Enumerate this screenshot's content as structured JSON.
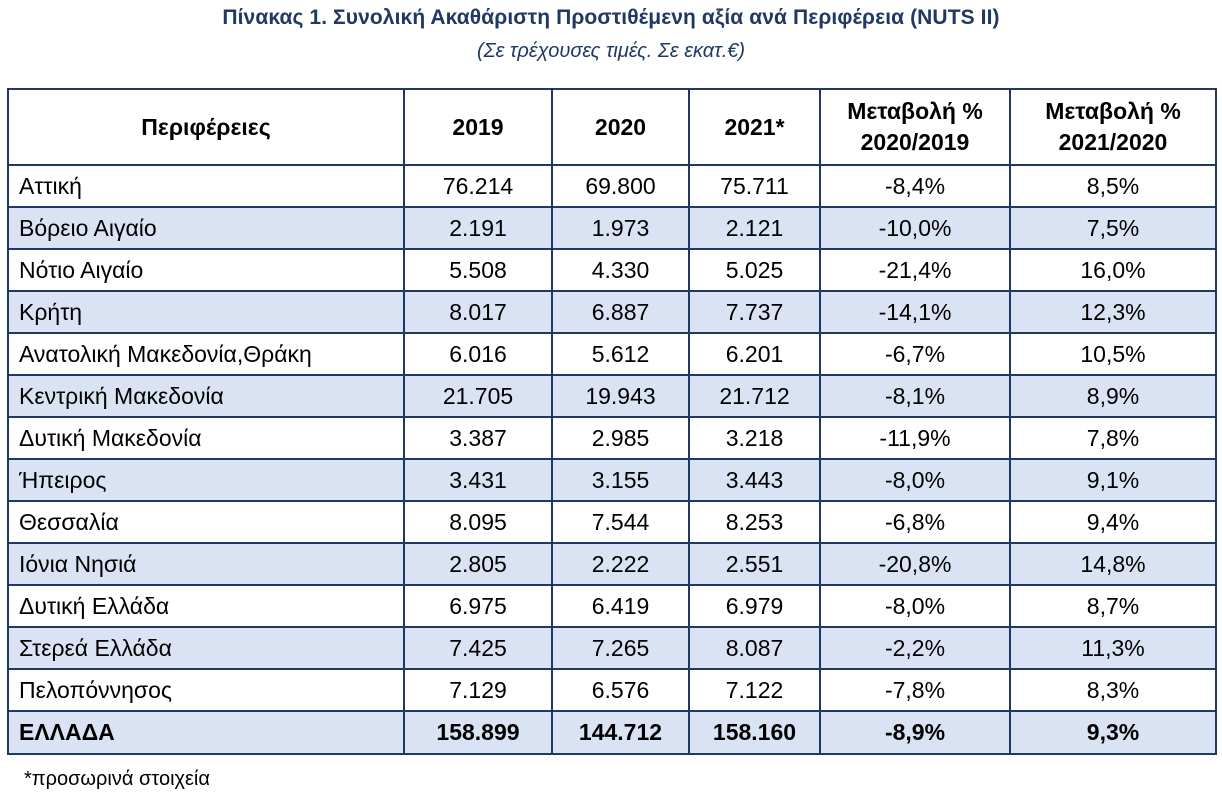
{
  "title": "Πίνακας 1. Συνολική Ακαθάριστη Προστιθέμενη αξία ανά  Περιφέρεια (NUTS II)",
  "subtitle": "(Σε τρέχουσες τιμές. Σε εκατ.€)",
  "headers": {
    "region": "Περιφέρειες",
    "y2019": "2019",
    "y2020": "2020",
    "y2021": "2021*",
    "chg1_line1": "Μεταβολή %",
    "chg1_line2": "2020/2019",
    "chg2_line1": "Μεταβολή %",
    "chg2_line2": "2021/2020"
  },
  "rows": [
    {
      "name": "Αττική",
      "y2019": "76.214",
      "y2020": "69.800",
      "y2021": "75.711",
      "chg1": "-8,4%",
      "chg2": "8,5%"
    },
    {
      "name": "Βόρειο Αιγαίο",
      "y2019": "2.191",
      "y2020": "1.973",
      "y2021": "2.121",
      "chg1": "-10,0%",
      "chg2": "7,5%"
    },
    {
      "name": "Νότιο Αιγαίο",
      "y2019": "5.508",
      "y2020": "4.330",
      "y2021": "5.025",
      "chg1": "-21,4%",
      "chg2": "16,0%"
    },
    {
      "name": "Κρήτη",
      "y2019": "8.017",
      "y2020": "6.887",
      "y2021": "7.737",
      "chg1": "-14,1%",
      "chg2": "12,3%"
    },
    {
      "name": "Ανατολική Μακεδονία,Θράκη",
      "y2019": "6.016",
      "y2020": "5.612",
      "y2021": "6.201",
      "chg1": "-6,7%",
      "chg2": "10,5%"
    },
    {
      "name": "Κεντρική Μακεδονία",
      "y2019": "21.705",
      "y2020": "19.943",
      "y2021": "21.712",
      "chg1": "-8,1%",
      "chg2": "8,9%"
    },
    {
      "name": "Δυτική Μακεδονία",
      "y2019": "3.387",
      "y2020": "2.985",
      "y2021": "3.218",
      "chg1": "-11,9%",
      "chg2": "7,8%"
    },
    {
      "name": "Ήπειρος",
      "y2019": "3.431",
      "y2020": "3.155",
      "y2021": "3.443",
      "chg1": "-8,0%",
      "chg2": "9,1%"
    },
    {
      "name": "Θεσσαλία",
      "y2019": "8.095",
      "y2020": "7.544",
      "y2021": "8.253",
      "chg1": "-6,8%",
      "chg2": "9,4%"
    },
    {
      "name": "Ιόνια Νησιά",
      "y2019": "2.805",
      "y2020": "2.222",
      "y2021": "2.551",
      "chg1": "-20,8%",
      "chg2": "14,8%"
    },
    {
      "name": "Δυτική Ελλάδα",
      "y2019": "6.975",
      "y2020": "6.419",
      "y2021": "6.979",
      "chg1": "-8,0%",
      "chg2": "8,7%"
    },
    {
      "name": "Στερεά Ελλάδα",
      "y2019": "7.425",
      "y2020": "7.265",
      "y2021": "8.087",
      "chg1": "-2,2%",
      "chg2": "11,3%"
    },
    {
      "name": "Πελοπόννησος",
      "y2019": "7.129",
      "y2020": "6.576",
      "y2021": "7.122",
      "chg1": "-7,8%",
      "chg2": "8,3%"
    }
  ],
  "total": {
    "name": "ΕΛΛΑΔΑ",
    "y2019": "158.899",
    "y2020": "144.712",
    "y2021": "158.160",
    "chg1": "-8,9%",
    "chg2": "9,3%"
  },
  "footnote": "*προσωρινά στοιχεία",
  "colors": {
    "title": "#1f3864",
    "border": "#1f3864",
    "alt_row": "#dae3f3"
  }
}
